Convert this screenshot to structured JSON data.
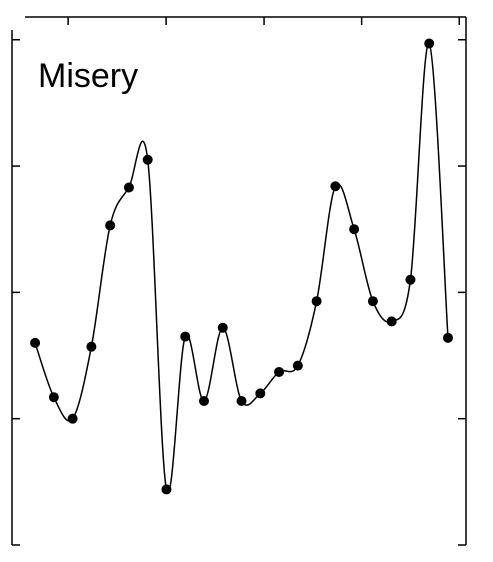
{
  "chart_data": {
    "type": "line",
    "title": "Misery",
    "x": [
      1,
      2,
      3,
      4,
      5,
      6,
      7,
      8,
      9,
      10,
      11,
      12,
      13,
      14,
      15,
      16,
      17,
      18,
      19,
      20,
      21,
      22,
      23
    ],
    "series": [
      {
        "color": "#000000",
        "values": [
          1.6,
          1.17,
          1.0,
          1.57,
          2.53,
          2.83,
          3.05,
          0.44,
          1.65,
          1.14,
          1.72,
          1.14,
          1.2,
          1.37,
          1.42,
          1.93,
          2.84,
          2.5,
          1.93,
          1.77,
          2.1,
          3.97,
          1.64
        ]
      }
    ],
    "xlim": [
      -0.23,
      23.96
    ],
    "xticks": [
      2.76,
      7.98,
      13.2,
      18.4,
      23.6
    ],
    "ylim": [
      0,
      4.18
    ],
    "yticks": [
      0,
      1,
      2,
      3,
      4
    ]
  }
}
